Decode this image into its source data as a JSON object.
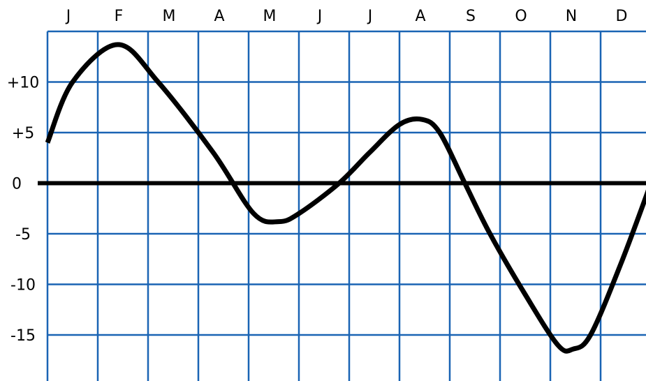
{
  "chart_data": {
    "type": "line",
    "months": [
      "J",
      "F",
      "M",
      "A",
      "M",
      "J",
      "J",
      "A",
      "S",
      "O",
      "N",
      "D"
    ],
    "y_ticks": [
      {
        "value": 10,
        "label": "+10"
      },
      {
        "value": 5,
        "label": "+5"
      },
      {
        "value": 0,
        "label": "0"
      },
      {
        "value": -5,
        "label": "-5"
      },
      {
        "value": -10,
        "label": "-10"
      },
      {
        "value": -15,
        "label": "-15"
      }
    ],
    "ylim": [
      -19.5,
      15
    ],
    "x_range": [
      0,
      12
    ],
    "grid": true,
    "series": [
      {
        "points": [
          {
            "x": 0,
            "y": 4
          },
          {
            "x": 0.5,
            "y": 10
          },
          {
            "x": 1.4,
            "y": 13.7
          },
          {
            "x": 2.2,
            "y": 10
          },
          {
            "x": 3.3,
            "y": 3
          },
          {
            "x": 4.1,
            "y": -3
          },
          {
            "x": 4.6,
            "y": -3.8
          },
          {
            "x": 5.0,
            "y": -3
          },
          {
            "x": 5.8,
            "y": 0
          },
          {
            "x": 6.4,
            "y": 3
          },
          {
            "x": 7.0,
            "y": 5.8
          },
          {
            "x": 7.45,
            "y": 6.3
          },
          {
            "x": 7.8,
            "y": 5
          },
          {
            "x": 8.3,
            "y": 0
          },
          {
            "x": 8.8,
            "y": -5
          },
          {
            "x": 9.5,
            "y": -11
          },
          {
            "x": 10.15,
            "y": -16
          },
          {
            "x": 10.45,
            "y": -16.4
          },
          {
            "x": 10.8,
            "y": -15
          },
          {
            "x": 11.4,
            "y": -8
          },
          {
            "x": 12.0,
            "y": 0
          },
          {
            "x": 12.1,
            "y": 1.5
          }
        ]
      }
    ]
  },
  "colors": {
    "grid": "#1a64b4",
    "line": "#000000",
    "zero_line": "#000000"
  }
}
